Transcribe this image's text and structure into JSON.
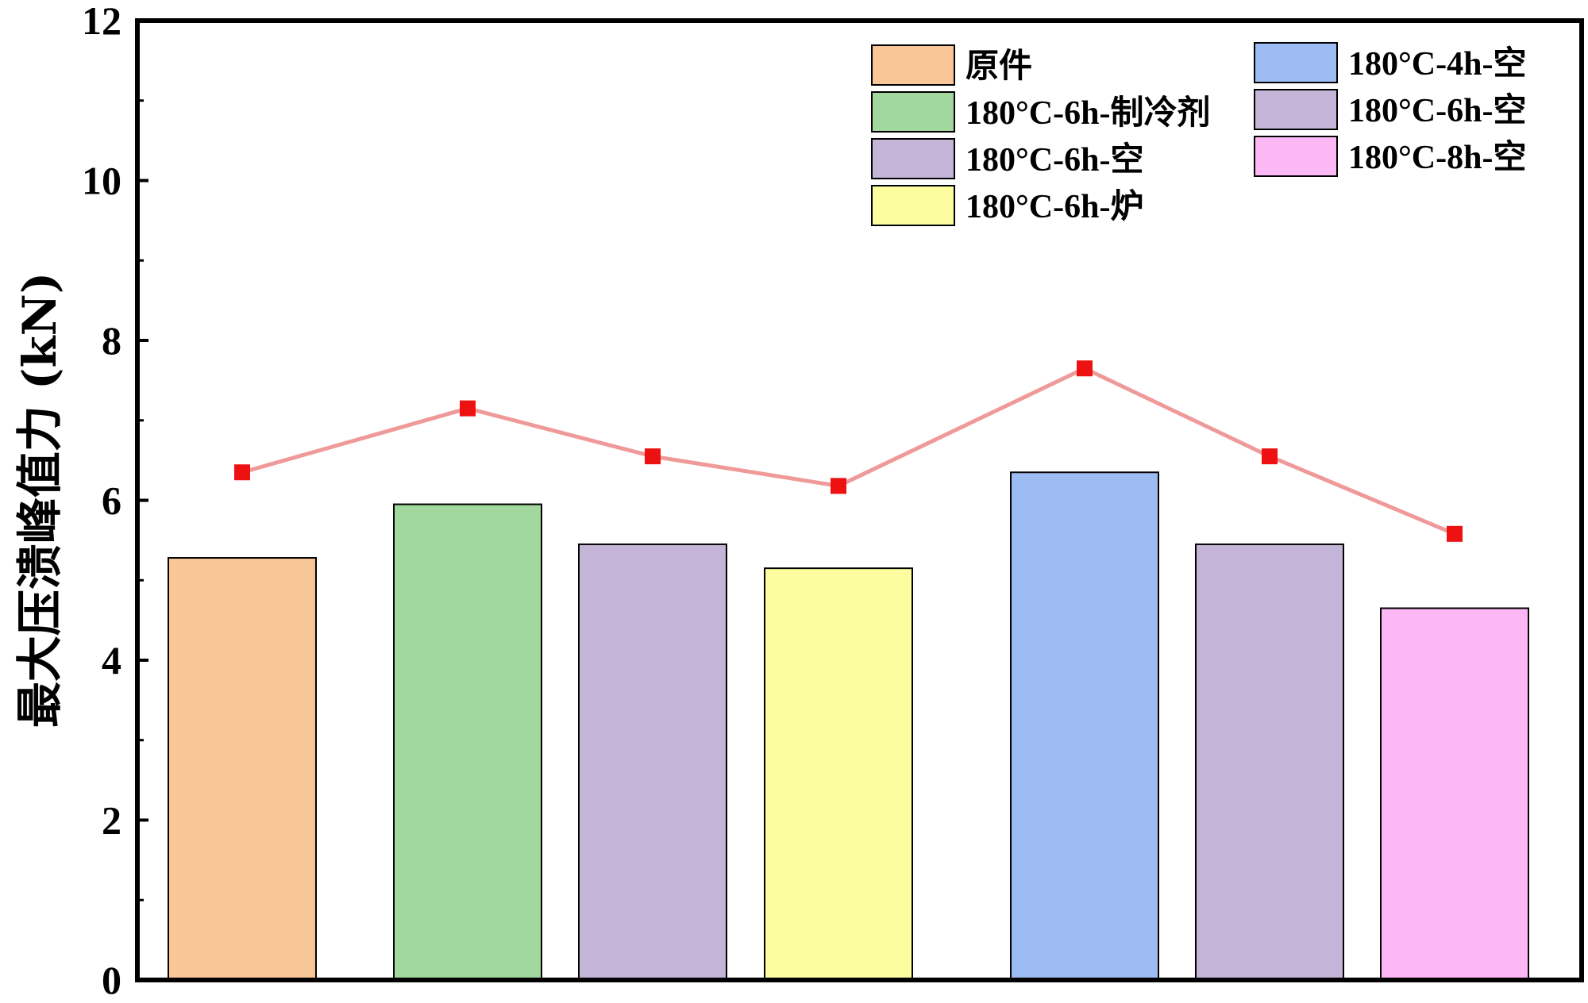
{
  "chart_data": {
    "type": "bar",
    "title": "",
    "xlabel": "",
    "ylabel": "最大压溃峰值力 (kN)",
    "ylim": [
      0,
      12
    ],
    "yticks": [
      0,
      2,
      4,
      6,
      8,
      10,
      12
    ],
    "grid": false,
    "legend_position": "top-right",
    "categories": [
      "原件",
      "180°C-6h-制冷剂",
      "180°C-6h-空",
      "180°C-6h-炉",
      "180°C-4h-空",
      "180°C-6h-空",
      "180°C-8h-空"
    ],
    "values": [
      5.28,
      5.95,
      5.45,
      5.15,
      6.35,
      5.45,
      4.65
    ],
    "bar_colors": [
      "#f9c797",
      "#a2d89e",
      "#c4b4d8",
      "#fbfd9f",
      "#9ebcf4",
      "#c4b4d8",
      "#fbb8f5"
    ],
    "line_series": {
      "values": [
        6.35,
        7.15,
        6.55,
        6.18,
        7.65,
        6.55,
        5.58
      ],
      "line_color": "#f09999",
      "marker_color": "#ee1111"
    },
    "legend": {
      "column_1": [
        "原件",
        "180°C-6h-制冷剂",
        "180°C-6h-空",
        "180°C-6h-炉"
      ],
      "column_2": [
        "180°C-4h-空",
        "180°C-6h-空",
        "180°C-8h-空"
      ]
    }
  }
}
